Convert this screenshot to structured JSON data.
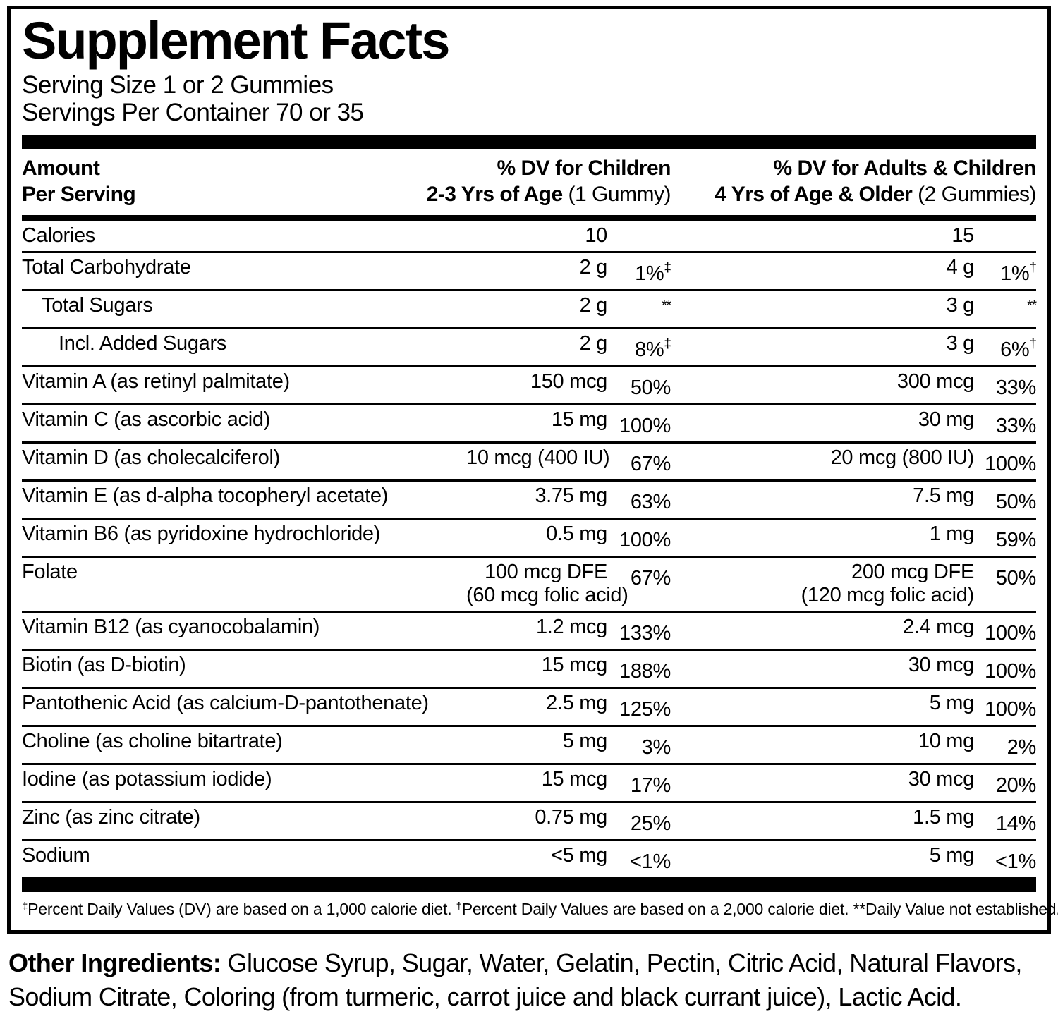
{
  "label": {
    "title": "Supplement Facts",
    "serving_size": "Serving Size 1 or 2 Gummies",
    "servings_per_container": "Servings Per Container 70 or 35"
  },
  "table": {
    "header": {
      "amount_line1": "Amount",
      "amount_line2": "Per Serving",
      "children_line1": "% DV for Children",
      "children_line2_bold": "2-3 Yrs of Age",
      "children_line2_reg": " (1 Gummy)",
      "adults_line1": "% DV for Adults & Children",
      "adults_line2_bold": "4 Yrs of Age & Older",
      "adults_line2_reg": " (2 Gummies)"
    },
    "rows": [
      {
        "name": "Calories",
        "indent": 0,
        "child_amount": "10",
        "adult_amount": "15"
      },
      {
        "name": "Total Carbohydrate",
        "indent": 0,
        "child_amount": "2 g",
        "child_dv": "1%",
        "child_dv_sup": "‡",
        "adult_amount": "4 g",
        "adult_dv": "1%",
        "adult_dv_sup": "†"
      },
      {
        "name": "Total Sugars",
        "indent": 1,
        "child_amount": "2 g",
        "child_dv": "",
        "child_dv_sup": "**",
        "adult_amount": "3 g",
        "adult_dv": "",
        "adult_dv_sup": "**"
      },
      {
        "name": "Incl. Added Sugars",
        "indent": 2,
        "child_amount": "2 g",
        "child_dv": "8%",
        "child_dv_sup": "‡",
        "adult_amount": "3 g",
        "adult_dv": "6%",
        "adult_dv_sup": "†"
      },
      {
        "name": "Vitamin A (as retinyl palmitate)",
        "indent": 0,
        "child_amount": "150 mcg",
        "child_dv": "50%",
        "adult_amount": "300 mcg",
        "adult_dv": "33%"
      },
      {
        "name": "Vitamin C (as ascorbic acid)",
        "indent": 0,
        "child_amount": "15 mg",
        "child_dv": "100%",
        "adult_amount": "30 mg",
        "adult_dv": "33%"
      },
      {
        "name": "Vitamin D (as cholecalciferol)",
        "indent": 0,
        "child_amount": "10 mcg (400 IU)",
        "child_dv": "67%",
        "adult_amount": "20 mcg (800 IU)",
        "adult_dv": "100%"
      },
      {
        "name": "Vitamin E (as d-alpha tocopheryl acetate)",
        "indent": 0,
        "child_amount": "3.75 mg",
        "child_dv": "63%",
        "adult_amount": "7.5 mg",
        "adult_dv": "50%"
      },
      {
        "name": "Vitamin B6 (as pyridoxine hydrochloride)",
        "indent": 0,
        "child_amount": "0.5 mg",
        "child_dv": "100%",
        "adult_amount": "1 mg",
        "adult_dv": "59%"
      },
      {
        "name": "Folate",
        "indent": 0,
        "child_amount": "100 mcg DFE",
        "child_amount2": "(60 mcg folic acid)",
        "child_dv": "67%",
        "adult_amount": "200 mcg DFE",
        "adult_amount2": "(120 mcg folic acid)",
        "adult_dv": "50%"
      },
      {
        "name": "Vitamin B12 (as cyanocobalamin)",
        "indent": 0,
        "child_amount": "1.2 mcg",
        "child_dv": "133%",
        "adult_amount": "2.4 mcg",
        "adult_dv": "100%"
      },
      {
        "name": "Biotin (as D-biotin)",
        "indent": 0,
        "child_amount": "15 mcg",
        "child_dv": "188%",
        "adult_amount": "30 mcg",
        "adult_dv": "100%"
      },
      {
        "name": "Pantothenic Acid (as calcium-D-pantothenate)",
        "indent": 0,
        "child_amount": "2.5 mg",
        "child_dv": "125%",
        "adult_amount": "5 mg",
        "adult_dv": "100%"
      },
      {
        "name": "Choline (as choline bitartrate)",
        "indent": 0,
        "child_amount": "5 mg",
        "child_dv": "3%",
        "adult_amount": "10 mg",
        "adult_dv": "2%"
      },
      {
        "name": "Iodine (as potassium iodide)",
        "indent": 0,
        "child_amount": "15 mcg",
        "child_dv": "17%",
        "adult_amount": "30 mcg",
        "adult_dv": "20%"
      },
      {
        "name": "Zinc (as zinc citrate)",
        "indent": 0,
        "child_amount": "0.75 mg",
        "child_dv": "25%",
        "adult_amount": "1.5 mg",
        "adult_dv": "14%"
      },
      {
        "name": "Sodium",
        "indent": 0,
        "child_amount": "<5 mg",
        "child_dv": "<1%",
        "adult_amount": "5 mg",
        "adult_dv": "<1%"
      }
    ]
  },
  "footnote": {
    "s1_sup": "‡",
    "s1_text": "Percent Daily Values (DV) are based on a 1,000 calorie diet. ",
    "s2_sup": "†",
    "s2_text": "Percent Daily Values are based on a 2,000 calorie diet. ",
    "s3_text": "**Daily Value not established."
  },
  "other_ingredients": {
    "label": "Other Ingredients:",
    "text": " Glucose Syrup, Sugar, Water, Gelatin, Pectin, Citric Acid, Natural Flavors, Sodium Citrate, Coloring (from turmeric, carrot juice and black currant juice), Lactic Acid."
  },
  "colors": {
    "text": "#000000",
    "background": "#ffffff"
  }
}
